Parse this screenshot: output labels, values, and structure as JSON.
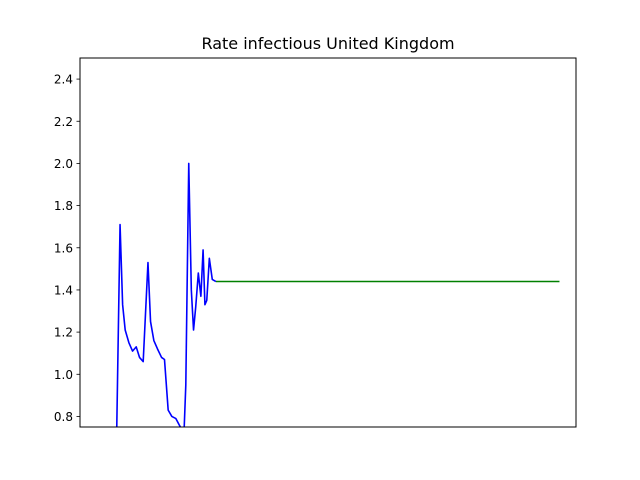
{
  "chart_data": {
    "type": "line",
    "title": "Rate infectious United Kingdom",
    "xlabel": "",
    "ylabel": "",
    "x_tick_labels_shown": false,
    "ylim": [
      0.75,
      2.5
    ],
    "y_ticks": [
      0.8,
      1.0,
      1.2,
      1.4,
      1.6,
      1.8,
      2.0,
      2.2,
      2.4
    ],
    "y_tick_labels": [
      "0.8",
      "1.0",
      "1.2",
      "1.4",
      "1.6",
      "1.8",
      "2.0",
      "2.2",
      "2.4"
    ],
    "xlim": [
      0,
      135
    ],
    "grid": false,
    "legend": false,
    "series": [
      {
        "color": "#0000ff",
        "x": [
          10,
          10.9,
          11.6,
          12.3,
          13.3,
          14.3,
          15.3,
          16.2,
          17.2,
          18.5,
          19.2,
          20.1,
          21.1,
          22.2,
          23.0,
          24.0,
          25.0,
          26.1,
          27.0,
          28.3,
          28.8,
          29.6,
          30.3,
          30.9,
          31.5,
          32.2,
          32.9,
          33.5,
          34.0,
          34.5,
          35.2,
          36.0,
          37.0
        ],
        "y": [
          0.74,
          1.71,
          1.33,
          1.21,
          1.15,
          1.11,
          1.13,
          1.08,
          1.06,
          1.53,
          1.25,
          1.16,
          1.12,
          1.08,
          1.07,
          0.83,
          0.8,
          0.79,
          0.76,
          0.72,
          0.95,
          2.0,
          1.4,
          1.21,
          1.32,
          1.48,
          1.37,
          1.59,
          1.33,
          1.35,
          1.55,
          1.45,
          1.44
        ]
      },
      {
        "color": "#008000",
        "x": [
          37.0,
          130.5
        ],
        "y": [
          1.44,
          1.44
        ]
      }
    ]
  }
}
